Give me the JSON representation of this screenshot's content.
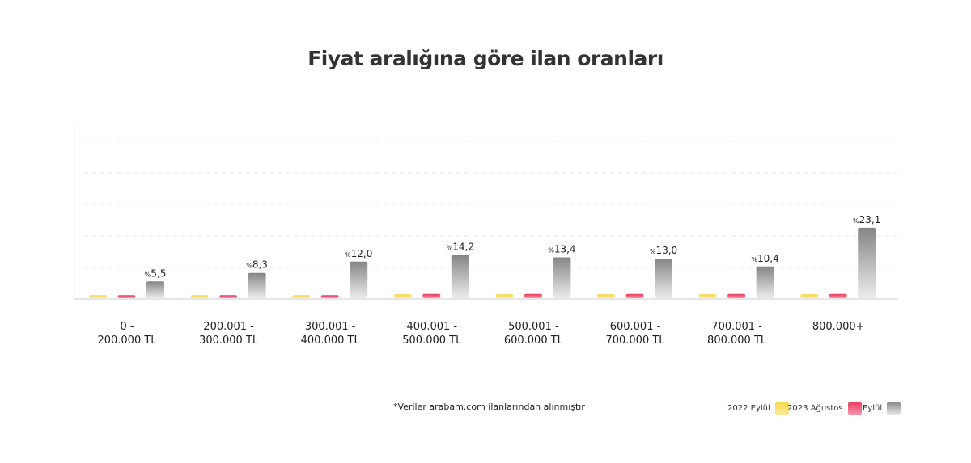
{
  "title": "Fiyat aralığına göre ilan oranları",
  "note": "*Veriler arabam.com ilanlarından alınmıştır",
  "chart_data": {
    "type": "bar",
    "title": "Fiyat aralığına göre ilan oranları",
    "categories": [
      [
        "0 -",
        "200.000 TL"
      ],
      [
        "200.001 -",
        "300.000 TL"
      ],
      [
        "300.001 -",
        "400.000 TL"
      ],
      [
        "400.001 -",
        "500.000 TL"
      ],
      [
        "500.001 -",
        "600.000 TL"
      ],
      [
        "600.001 -",
        "700.000 TL"
      ],
      [
        "700.001 -",
        "800.000 TL"
      ],
      [
        "800.000+",
        ""
      ]
    ],
    "series": [
      {
        "name": "2022 Eylül",
        "color": "#f7d84a",
        "values": [
          1.0,
          1.0,
          1.0,
          1.3,
          1.3,
          1.3,
          1.3,
          1.3
        ]
      },
      {
        "name": "2023 Ağustos",
        "color": "#e8385e",
        "values": [
          1.0,
          1.0,
          1.0,
          1.4,
          1.4,
          1.4,
          1.4,
          1.4
        ]
      },
      {
        "name": "Eylül",
        "color": "#888888",
        "values": [
          5.5,
          8.3,
          12.0,
          14.2,
          13.4,
          13.0,
          10.4,
          23.1
        ],
        "labels": [
          "%5,5",
          "%8,3",
          "%12,0",
          "%14,2",
          "%13,4",
          "%13,0",
          "%10,4",
          "%23,1"
        ]
      }
    ],
    "ylim": [
      0,
      52
    ],
    "grid": true,
    "legend": "bottom-right"
  }
}
